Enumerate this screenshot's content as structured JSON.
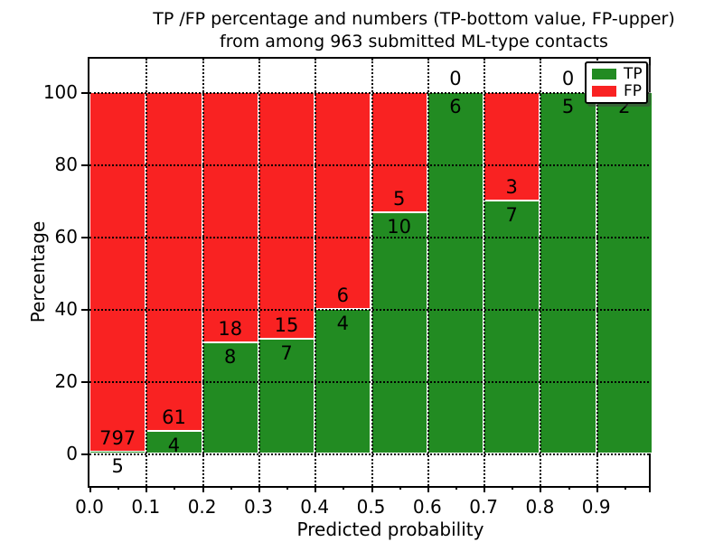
{
  "figure": {
    "background": "#ffffff"
  },
  "chart_data": {
    "type": "bar",
    "stacked": true,
    "normalized_to_percent": true,
    "title_line1": "TP /FP percentage and numbers (TP-bottom value, FP-upper)",
    "title_line2": "from among 963 submitted ML-type contacts",
    "xlabel": "Predicted probability",
    "ylabel": "Percentage",
    "xlim": [
      0.0,
      1.0
    ],
    "ylim": [
      -10,
      110
    ],
    "x_ticks": [
      "0.0",
      "0.1",
      "0.2",
      "0.3",
      "0.4",
      "0.5",
      "0.6",
      "0.7",
      "0.8",
      "0.9"
    ],
    "y_ticks": [
      0,
      20,
      40,
      60,
      80,
      100
    ],
    "grid_style": "dotted",
    "categories": [
      "0.0-0.1",
      "0.1-0.2",
      "0.2-0.3",
      "0.3-0.4",
      "0.4-0.5",
      "0.5-0.6",
      "0.6-0.7",
      "0.7-0.8",
      "0.8-0.9",
      "0.9-1.0"
    ],
    "series": [
      {
        "name": "TP",
        "values": [
          5,
          4,
          8,
          7,
          4,
          10,
          6,
          7,
          5,
          2
        ]
      },
      {
        "name": "FP",
        "values": [
          797,
          61,
          18,
          15,
          6,
          5,
          0,
          3,
          0,
          0
        ]
      }
    ],
    "bars": [
      {
        "bin": "0.0",
        "tp": 5,
        "fp": 797,
        "tp_pct": 0.62
      },
      {
        "bin": "0.1",
        "tp": 4,
        "fp": 61,
        "tp_pct": 6.15
      },
      {
        "bin": "0.2",
        "tp": 8,
        "fp": 18,
        "tp_pct": 30.77
      },
      {
        "bin": "0.3",
        "tp": 7,
        "fp": 15,
        "tp_pct": 31.82
      },
      {
        "bin": "0.4",
        "tp": 4,
        "fp": 6,
        "tp_pct": 40.0
      },
      {
        "bin": "0.5",
        "tp": 10,
        "fp": 5,
        "tp_pct": 66.67
      },
      {
        "bin": "0.6",
        "tp": 6,
        "fp": 0,
        "tp_pct": 100.0
      },
      {
        "bin": "0.7",
        "tp": 7,
        "fp": 3,
        "tp_pct": 70.0
      },
      {
        "bin": "0.8",
        "tp": 5,
        "fp": 0,
        "tp_pct": 100.0
      },
      {
        "bin": "0.9",
        "tp": 2,
        "fp": 0,
        "tp_pct": 100.0
      }
    ],
    "colors": {
      "tp": "#228b22",
      "fp": "#f92222"
    },
    "legend": {
      "position": "upper right",
      "entries": [
        {
          "label": "TP",
          "color": "#228b22"
        },
        {
          "label": "FP",
          "color": "#f92222"
        }
      ]
    },
    "total_contacts": 963
  }
}
